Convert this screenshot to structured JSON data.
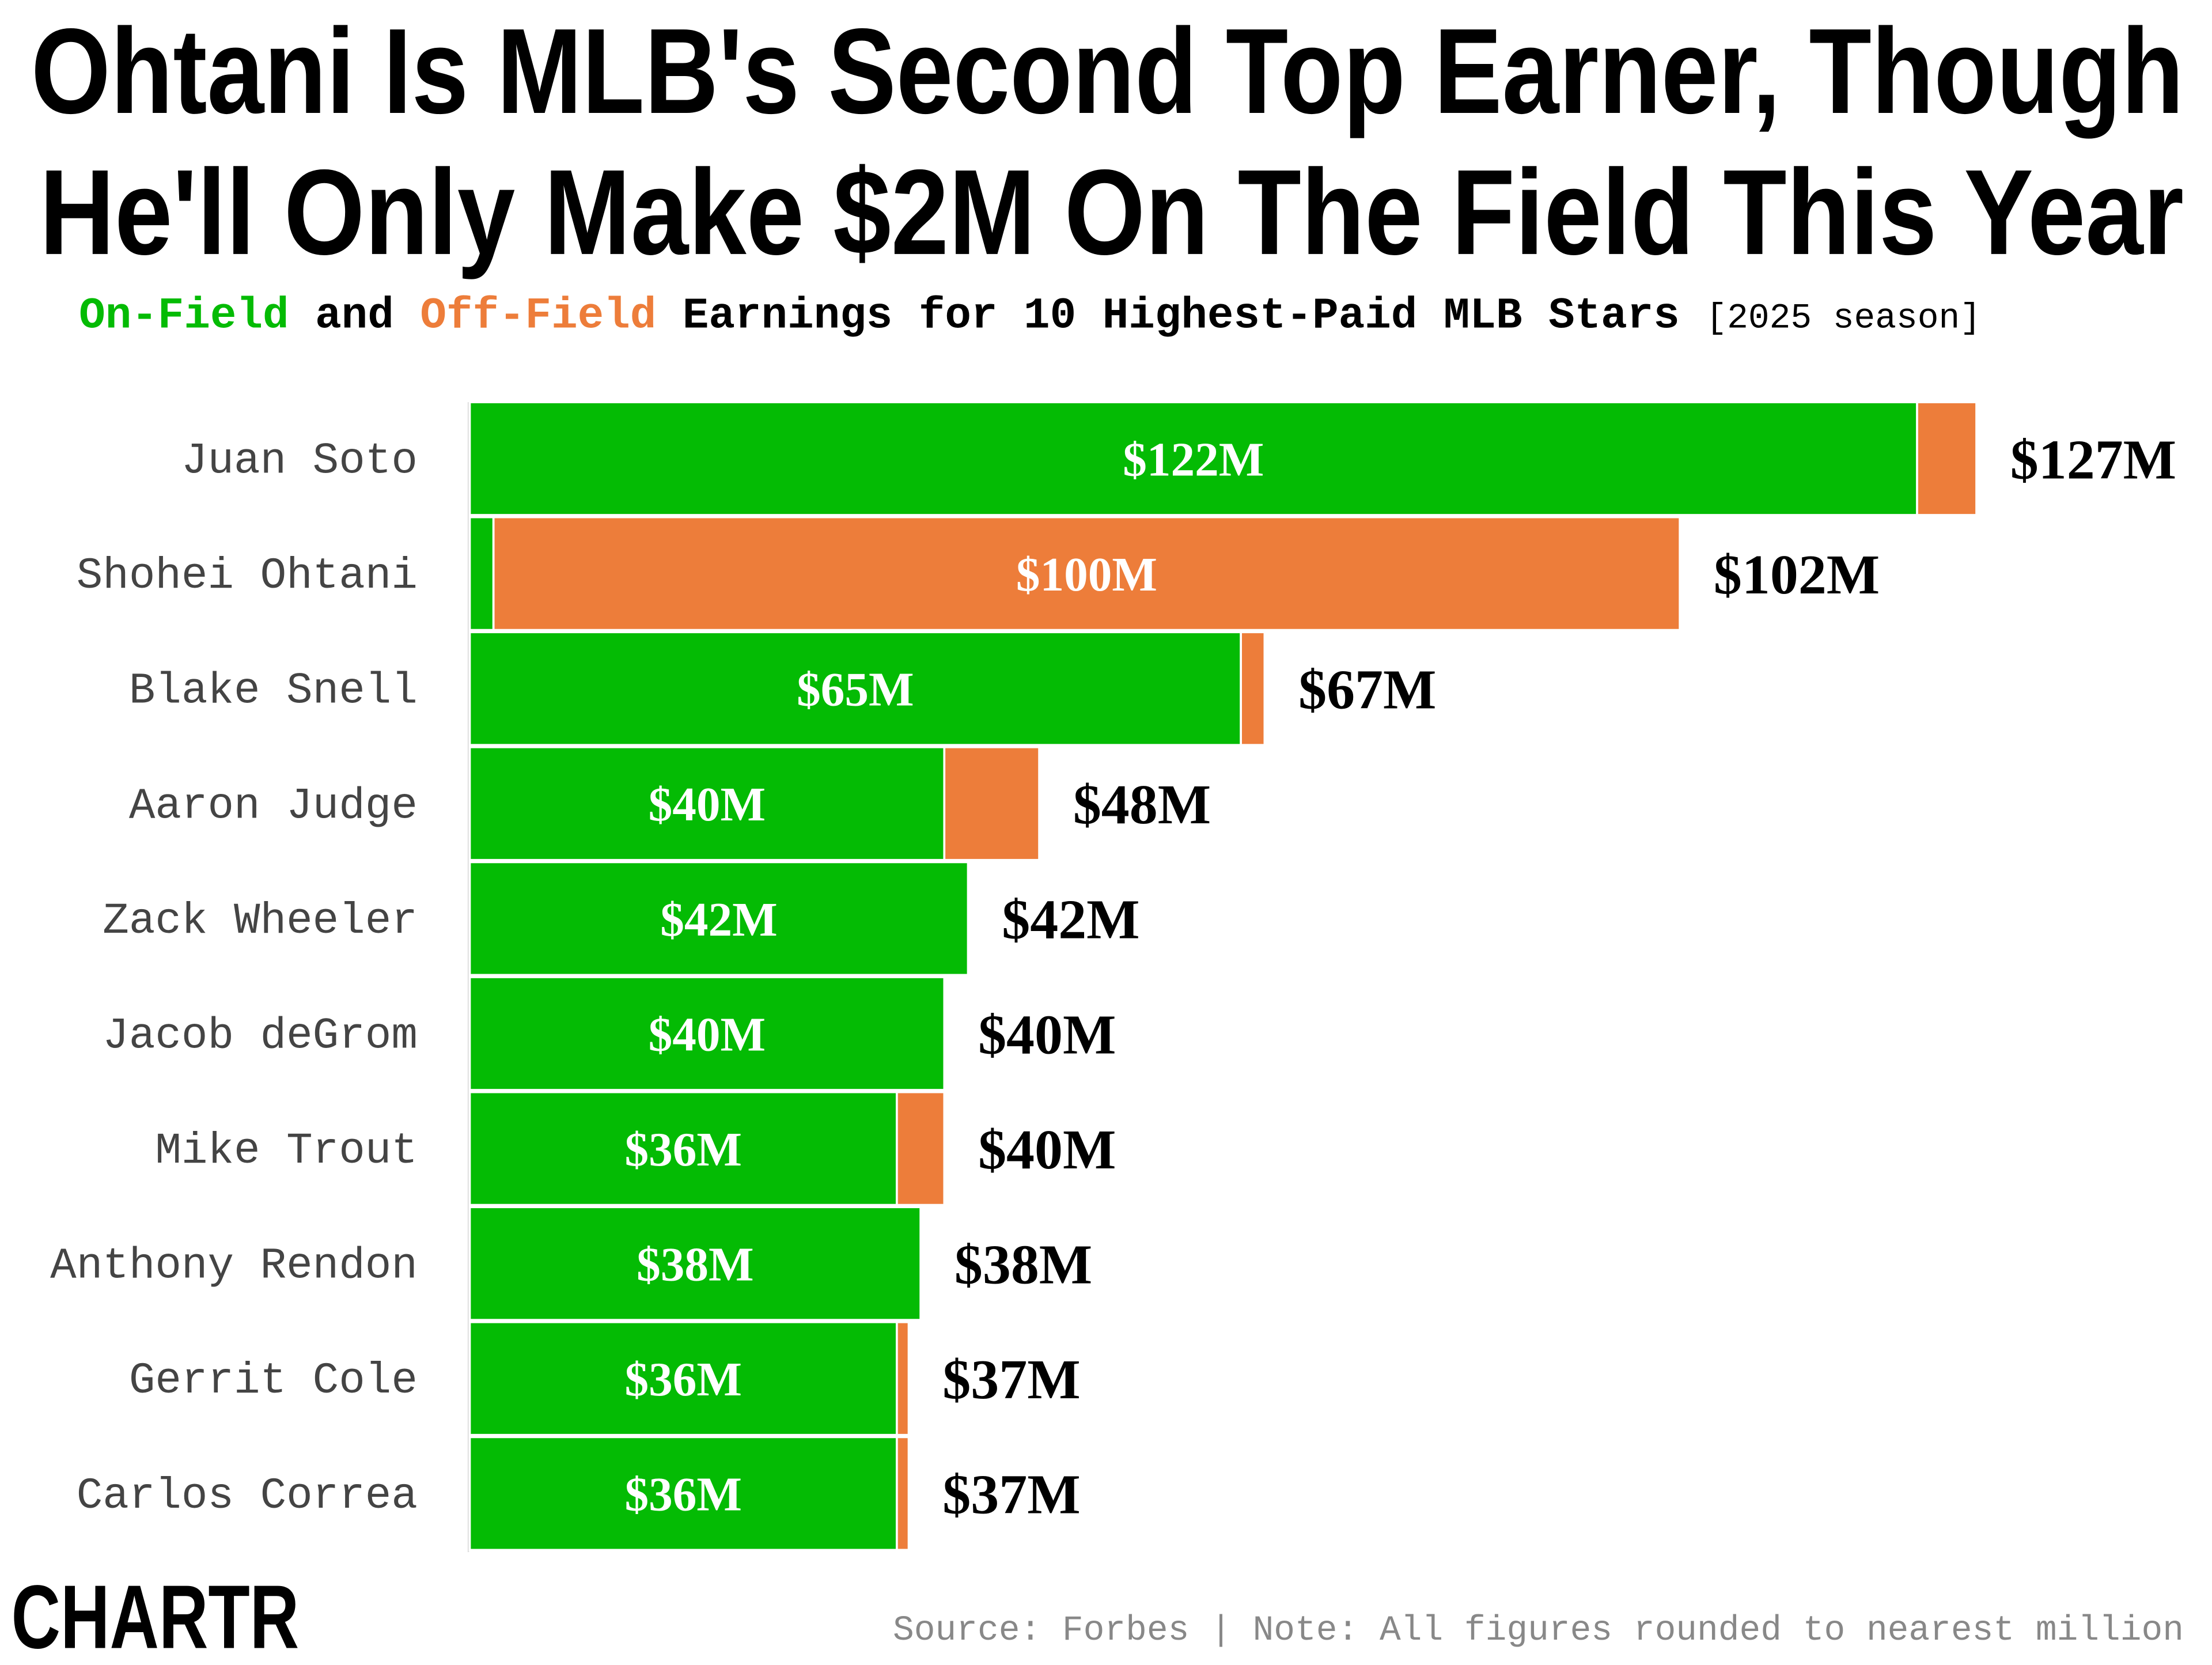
{
  "chart_data": {
    "type": "stacked-bar",
    "title": "Ohtani Is MLB's Second Top Earner, Though",
    "title_line2": "He'll Only Make $2M On The Field This Year",
    "subtitle_joiner": "and",
    "subtitle": "Earnings for 10 Highest-Paid MLB Stars",
    "subtitle_note": "[2025 season]",
    "categories": [
      "Juan Soto",
      "Shohei Ohtani",
      "Blake Snell",
      "Aaron Judge",
      "Zack Wheeler",
      "Jacob deGrom",
      "Mike Trout",
      "Anthony Rendon",
      "Gerrit Cole",
      "Carlos Correa"
    ],
    "series": [
      {
        "name": "On-Field",
        "color": "#04bb04",
        "values": [
          122,
          2,
          65,
          40,
          42,
          40,
          36,
          38,
          36,
          36
        ],
        "value_labels": [
          "$122M",
          null,
          "$65M",
          "$40M",
          "$42M",
          "$40M",
          "$36M",
          "$38M",
          "$36M",
          "$36M"
        ]
      },
      {
        "name": "Off-Field",
        "color": "#ed7d3a",
        "values": [
          5,
          100,
          2,
          8,
          0,
          0,
          4,
          0,
          1,
          1
        ],
        "value_labels": [
          null,
          "$100M",
          null,
          null,
          null,
          null,
          null,
          null,
          null,
          null
        ]
      }
    ],
    "totals": {
      "values": [
        127,
        102,
        67,
        48,
        42,
        40,
        40,
        38,
        37,
        37
      ],
      "value_labels": [
        "$127M",
        "$102M",
        "$67M",
        "$48M",
        "$42M",
        "$40M",
        "$40M",
        "$38M",
        "$37M",
        "$37M"
      ]
    },
    "source": "Source: Forbes | Note: All figures rounded to nearest million",
    "logo": "CHARTR"
  }
}
